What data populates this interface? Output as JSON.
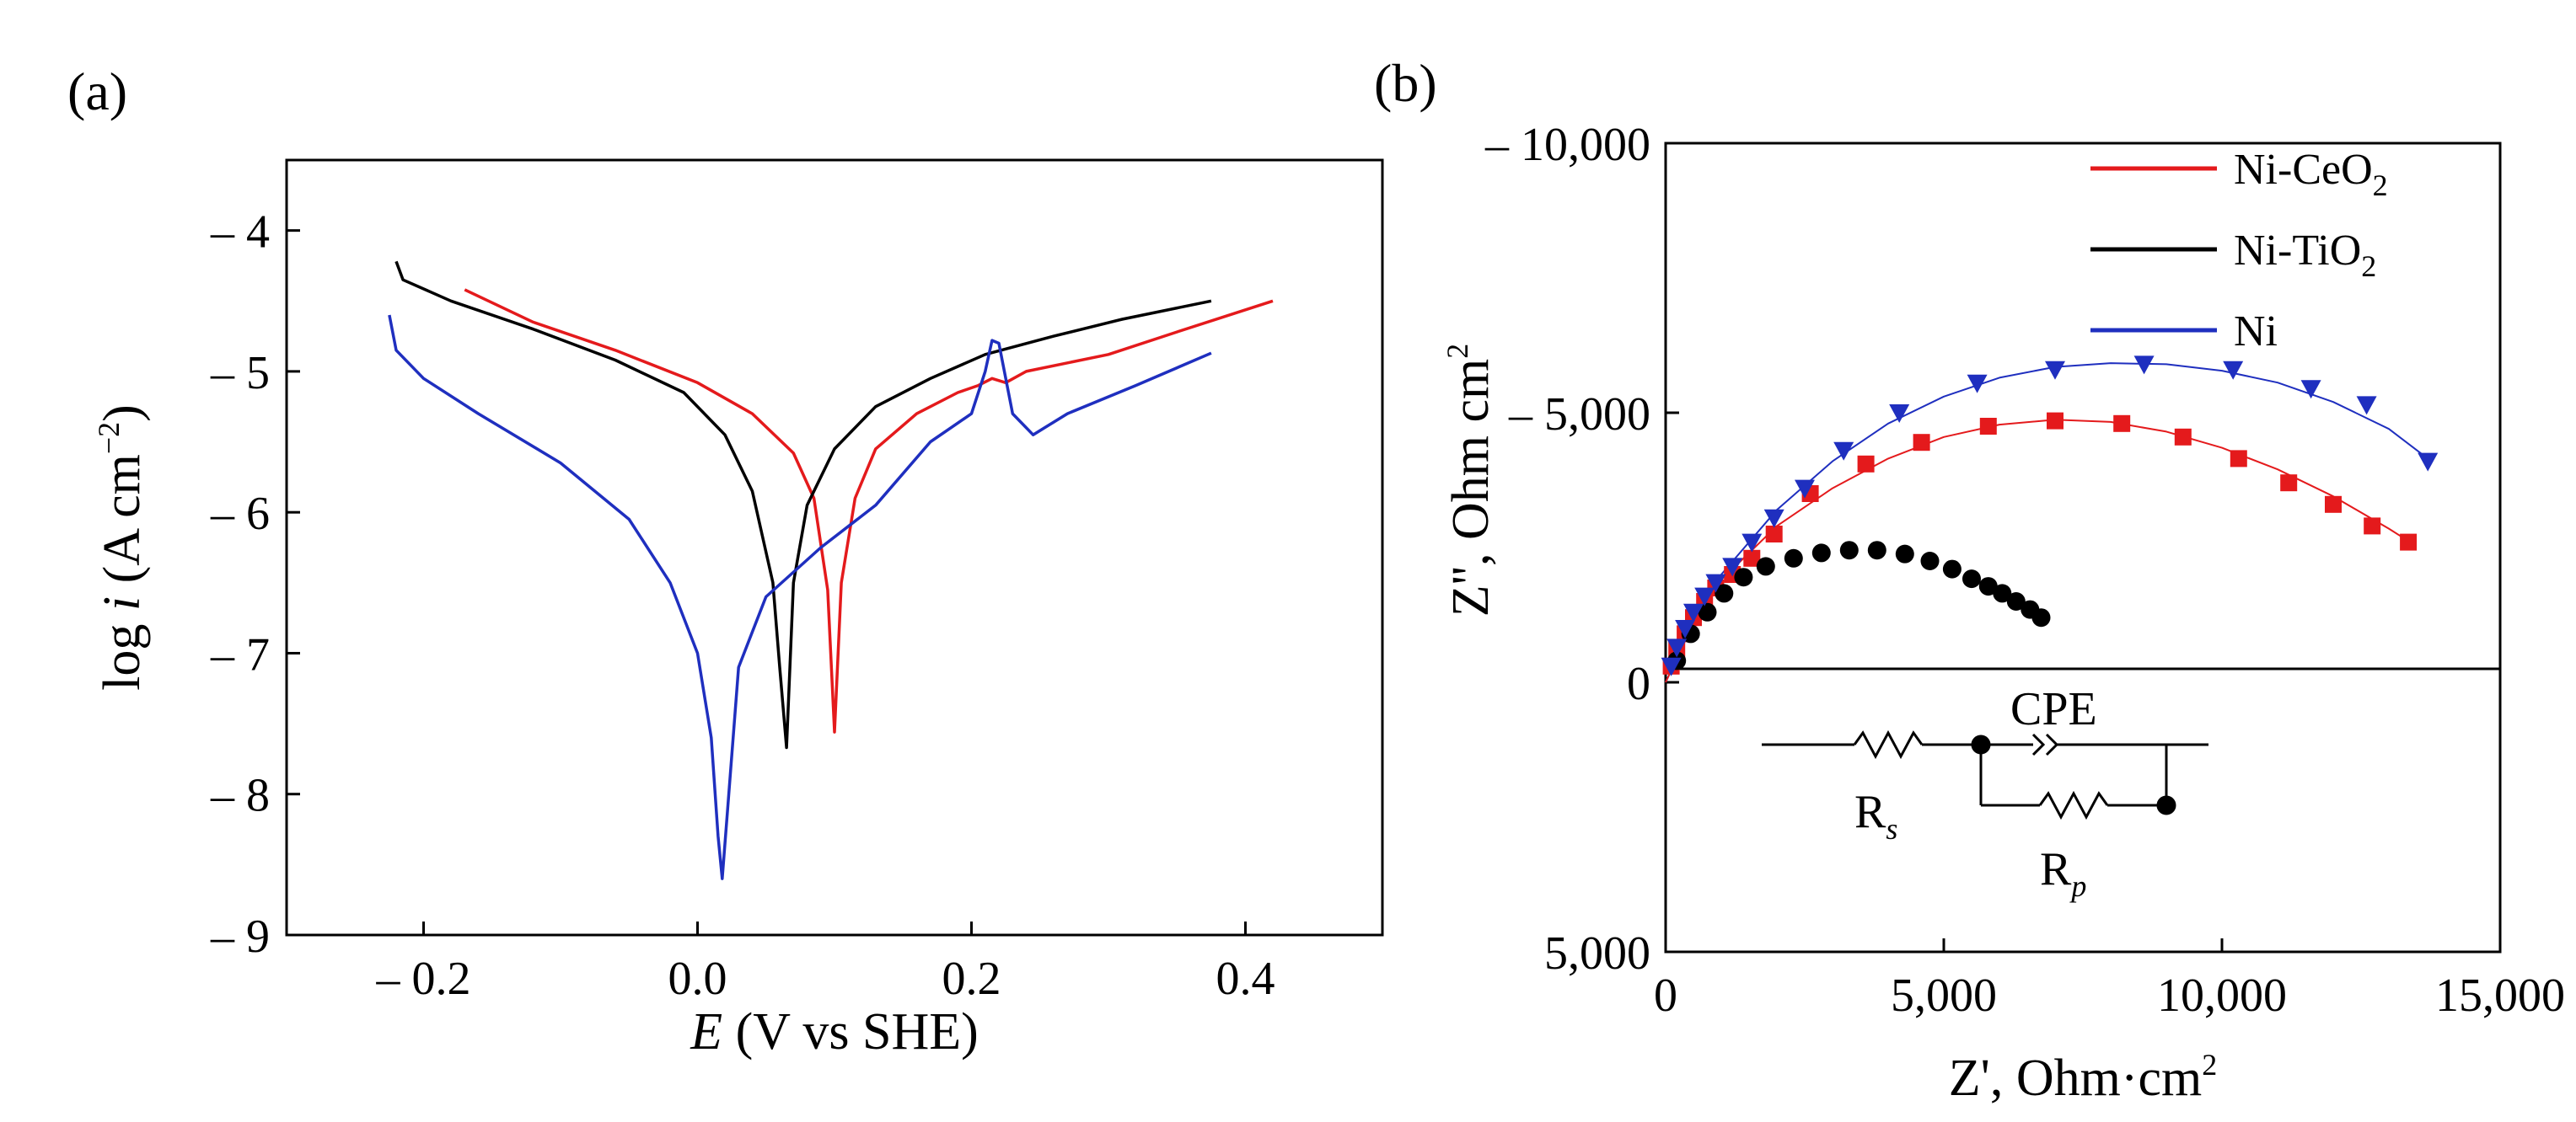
{
  "chart_data": [
    {
      "type": "line",
      "panel_label": "(a)",
      "xlabel_italic": "E",
      "xlabel_rest": " (V vs SHE)",
      "ylabel_prefix": "log ",
      "ylabel_italic": "i",
      "ylabel_rest": " (A cm",
      "ylabel_sup": "−2",
      "ylabel_close": ")",
      "xlim": [
        -0.3,
        0.5
      ],
      "ylim": [
        -9,
        -3.5
      ],
      "x_ticks": [
        {
          "value": -0.2,
          "label": "– 0.2"
        },
        {
          "value": 0.0,
          "label": "0.0"
        },
        {
          "value": 0.2,
          "label": "0.2"
        },
        {
          "value": 0.4,
          "label": "0.4"
        }
      ],
      "y_ticks": [
        {
          "value": -4,
          "label": "– 4"
        },
        {
          "value": -5,
          "label": "– 5"
        },
        {
          "value": -6,
          "label": "– 6"
        },
        {
          "value": -7,
          "label": "– 7"
        },
        {
          "value": -8,
          "label": "– 8"
        },
        {
          "value": -9,
          "label": "– 9"
        }
      ],
      "series": [
        {
          "name": "Ni-CeO2",
          "color": "#e41a1c",
          "x": [
            -0.17,
            -0.12,
            -0.06,
            0.0,
            0.04,
            0.07,
            0.085,
            0.095,
            0.1,
            0.105,
            0.115,
            0.13,
            0.16,
            0.19,
            0.205,
            0.215,
            0.225,
            0.24,
            0.3,
            0.35,
            0.42
          ],
          "y": [
            -4.42,
            -4.65,
            -4.85,
            -5.08,
            -5.3,
            -5.58,
            -5.9,
            -6.55,
            -7.56,
            -6.5,
            -5.9,
            -5.55,
            -5.3,
            -5.15,
            -5.1,
            -5.05,
            -5.08,
            -5.0,
            -4.88,
            -4.72,
            -4.5
          ]
        },
        {
          "name": "Ni-TiO2",
          "color": "#000000",
          "x": [
            -0.22,
            -0.215,
            -0.18,
            -0.12,
            -0.06,
            -0.01,
            0.02,
            0.04,
            0.055,
            0.06,
            0.065,
            0.07,
            0.08,
            0.1,
            0.13,
            0.17,
            0.21,
            0.26,
            0.31,
            0.375
          ],
          "y": [
            -4.22,
            -4.35,
            -4.5,
            -4.7,
            -4.92,
            -5.15,
            -5.45,
            -5.85,
            -6.5,
            -7.1,
            -7.67,
            -6.5,
            -5.95,
            -5.55,
            -5.25,
            -5.05,
            -4.88,
            -4.75,
            -4.63,
            -4.5
          ]
        },
        {
          "name": "Ni",
          "color": "#1f2fbf",
          "x": [
            -0.225,
            -0.22,
            -0.2,
            -0.16,
            -0.1,
            -0.05,
            -0.02,
            0.0,
            0.01,
            0.015,
            0.018,
            0.022,
            0.03,
            0.05,
            0.09,
            0.13,
            0.17,
            0.2,
            0.21,
            0.215,
            0.22,
            0.23,
            0.245,
            0.27,
            0.32,
            0.375
          ],
          "y": [
            -4.6,
            -4.85,
            -5.05,
            -5.3,
            -5.65,
            -6.05,
            -6.5,
            -7.0,
            -7.6,
            -8.3,
            -8.6,
            -8.1,
            -7.1,
            -6.6,
            -6.25,
            -5.95,
            -5.5,
            -5.3,
            -5.0,
            -4.78,
            -4.8,
            -5.3,
            -5.45,
            -5.3,
            -5.1,
            -4.87
          ]
        }
      ]
    },
    {
      "type": "scatter",
      "panel_label": "(b)",
      "xlabel": "Z', Ohm·cm",
      "xlabel_sup": "2",
      "ylabel": "Z'', Ohm cm",
      "ylabel_sup": "2",
      "xlim": [
        0,
        15000
      ],
      "ylim": [
        -5000,
        10000
      ],
      "x_ticks": [
        {
          "value": 5000,
          "label": "5,000"
        },
        {
          "value": 10000,
          "label": "10,000"
        },
        {
          "value": 15000,
          "label": "15,000"
        }
      ],
      "x_tick_zero_label": "0",
      "y_ticks": [
        {
          "value": 10000,
          "label": "– 10,000"
        },
        {
          "value": 5000,
          "label": "– 5,000"
        },
        {
          "value": 0,
          "label": "0"
        },
        {
          "value": -5000,
          "label": "5,000"
        }
      ],
      "legend": [
        {
          "name_main": "Ni-CeO",
          "name_sub": "2",
          "color": "#e41a1c"
        },
        {
          "name_main": "Ni-TiO",
          "name_sub": "2",
          "color": "#000000"
        },
        {
          "name_main": "Ni",
          "name_sub": "",
          "color": "#1f2fbf"
        }
      ],
      "series": [
        {
          "name": "Ni-CeO2",
          "marker": "square",
          "color": "#e41a1c",
          "x": [
            100,
            200,
            350,
            500,
            700,
            900,
            1200,
            1550,
            1950,
            2600,
            3600,
            4600,
            5800,
            7000,
            8200,
            9300,
            10300,
            11200,
            12000,
            12700,
            13350
          ],
          "y": [
            300,
            600,
            900,
            1200,
            1500,
            1750,
            2000,
            2300,
            2750,
            3500,
            4050,
            4450,
            4750,
            4850,
            4800,
            4550,
            4150,
            3700,
            3300,
            2900,
            2600
          ]
        },
        {
          "name": "Ni-TiO2",
          "marker": "circle",
          "color": "#000000",
          "x": [
            200,
            450,
            750,
            1050,
            1400,
            1800,
            2300,
            2800,
            3300,
            3800,
            4300,
            4750,
            5150,
            5500,
            5800,
            6050,
            6300,
            6550,
            6750
          ],
          "y": [
            400,
            900,
            1300,
            1650,
            1950,
            2150,
            2300,
            2400,
            2450,
            2450,
            2380,
            2250,
            2100,
            1920,
            1780,
            1650,
            1500,
            1350,
            1200
          ]
        },
        {
          "name": "Ni",
          "marker": "triangle-down",
          "color": "#1f2fbf",
          "x": [
            100,
            200,
            350,
            500,
            700,
            900,
            1200,
            1550,
            1950,
            2500,
            3200,
            4200,
            5600,
            7000,
            8600,
            10200,
            11600,
            12600,
            13700
          ],
          "y": [
            300,
            650,
            1000,
            1300,
            1600,
            1850,
            2150,
            2600,
            3050,
            3600,
            4300,
            5000,
            5550,
            5800,
            5900,
            5800,
            5450,
            5150,
            4100
          ]
        }
      ],
      "fit_curves": [
        {
          "name": "Ni fit",
          "color": "#1f2fbf",
          "x": [
            0,
            500,
            1000,
            2000,
            3000,
            4000,
            5000,
            6000,
            7000,
            8000,
            9000,
            10000,
            11000,
            12000,
            13000,
            13700
          ],
          "y": [
            0,
            1100,
            2000,
            3200,
            4100,
            4800,
            5300,
            5650,
            5850,
            5920,
            5900,
            5780,
            5560,
            5200,
            4700,
            4150
          ]
        },
        {
          "name": "Ni-CeO2 fit",
          "color": "#e41a1c",
          "x": [
            0,
            500,
            1000,
            2000,
            3000,
            4000,
            5000,
            6000,
            7000,
            8000,
            9000,
            10000,
            11000,
            12000,
            13000,
            13350
          ],
          "y": [
            0,
            1100,
            1900,
            2900,
            3600,
            4150,
            4550,
            4780,
            4870,
            4830,
            4650,
            4350,
            3950,
            3450,
            2850,
            2620
          ]
        }
      ],
      "circuit": {
        "rs_label": "R",
        "rs_sub": "s",
        "rp_label": "R",
        "rp_sub": "p",
        "cpe_label": "CPE"
      }
    }
  ]
}
